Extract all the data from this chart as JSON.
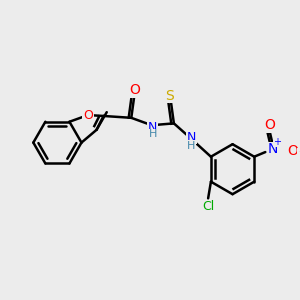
{
  "bg_color": "#ececec",
  "bond_color": "#000000",
  "bond_width": 1.8,
  "atom_colors": {
    "O": "#ff0000",
    "N": "#0000ff",
    "S": "#ccaa00",
    "Cl": "#00aa00",
    "C": "#000000",
    "H": "#4488aa"
  },
  "font_size": 8,
  "fig_size": [
    3.0,
    3.0
  ],
  "dpi": 100
}
